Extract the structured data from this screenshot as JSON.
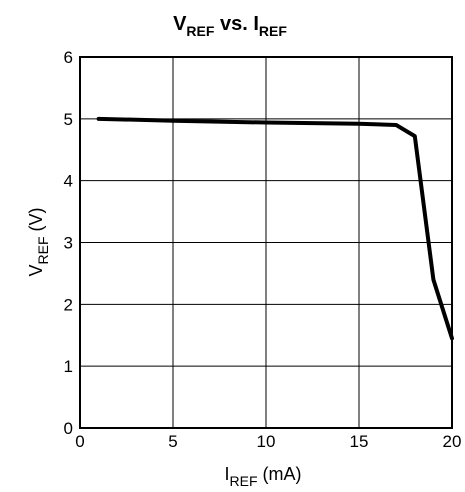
{
  "chart_data": {
    "type": "line",
    "title": {
      "part1": "V",
      "part1_sub": "REF",
      "part2": " vs. I",
      "part2_sub": "REF"
    },
    "xlabel": {
      "main": "I",
      "sub": "REF",
      "unit": " (mA)"
    },
    "ylabel": {
      "main": "V",
      "sub": "REF",
      "unit": " (V)"
    },
    "xlim": [
      0,
      20
    ],
    "ylim": [
      0,
      6
    ],
    "xticks": [
      0,
      5,
      10,
      15,
      20
    ],
    "yticks": [
      0,
      1,
      2,
      3,
      4,
      5,
      6
    ],
    "grid": true,
    "series": [
      {
        "color": "#000000",
        "x": [
          1,
          5,
          10,
          15,
          17,
          18,
          19,
          20
        ],
        "y": [
          5.0,
          4.97,
          4.94,
          4.92,
          4.9,
          4.72,
          2.4,
          1.45
        ]
      }
    ]
  }
}
